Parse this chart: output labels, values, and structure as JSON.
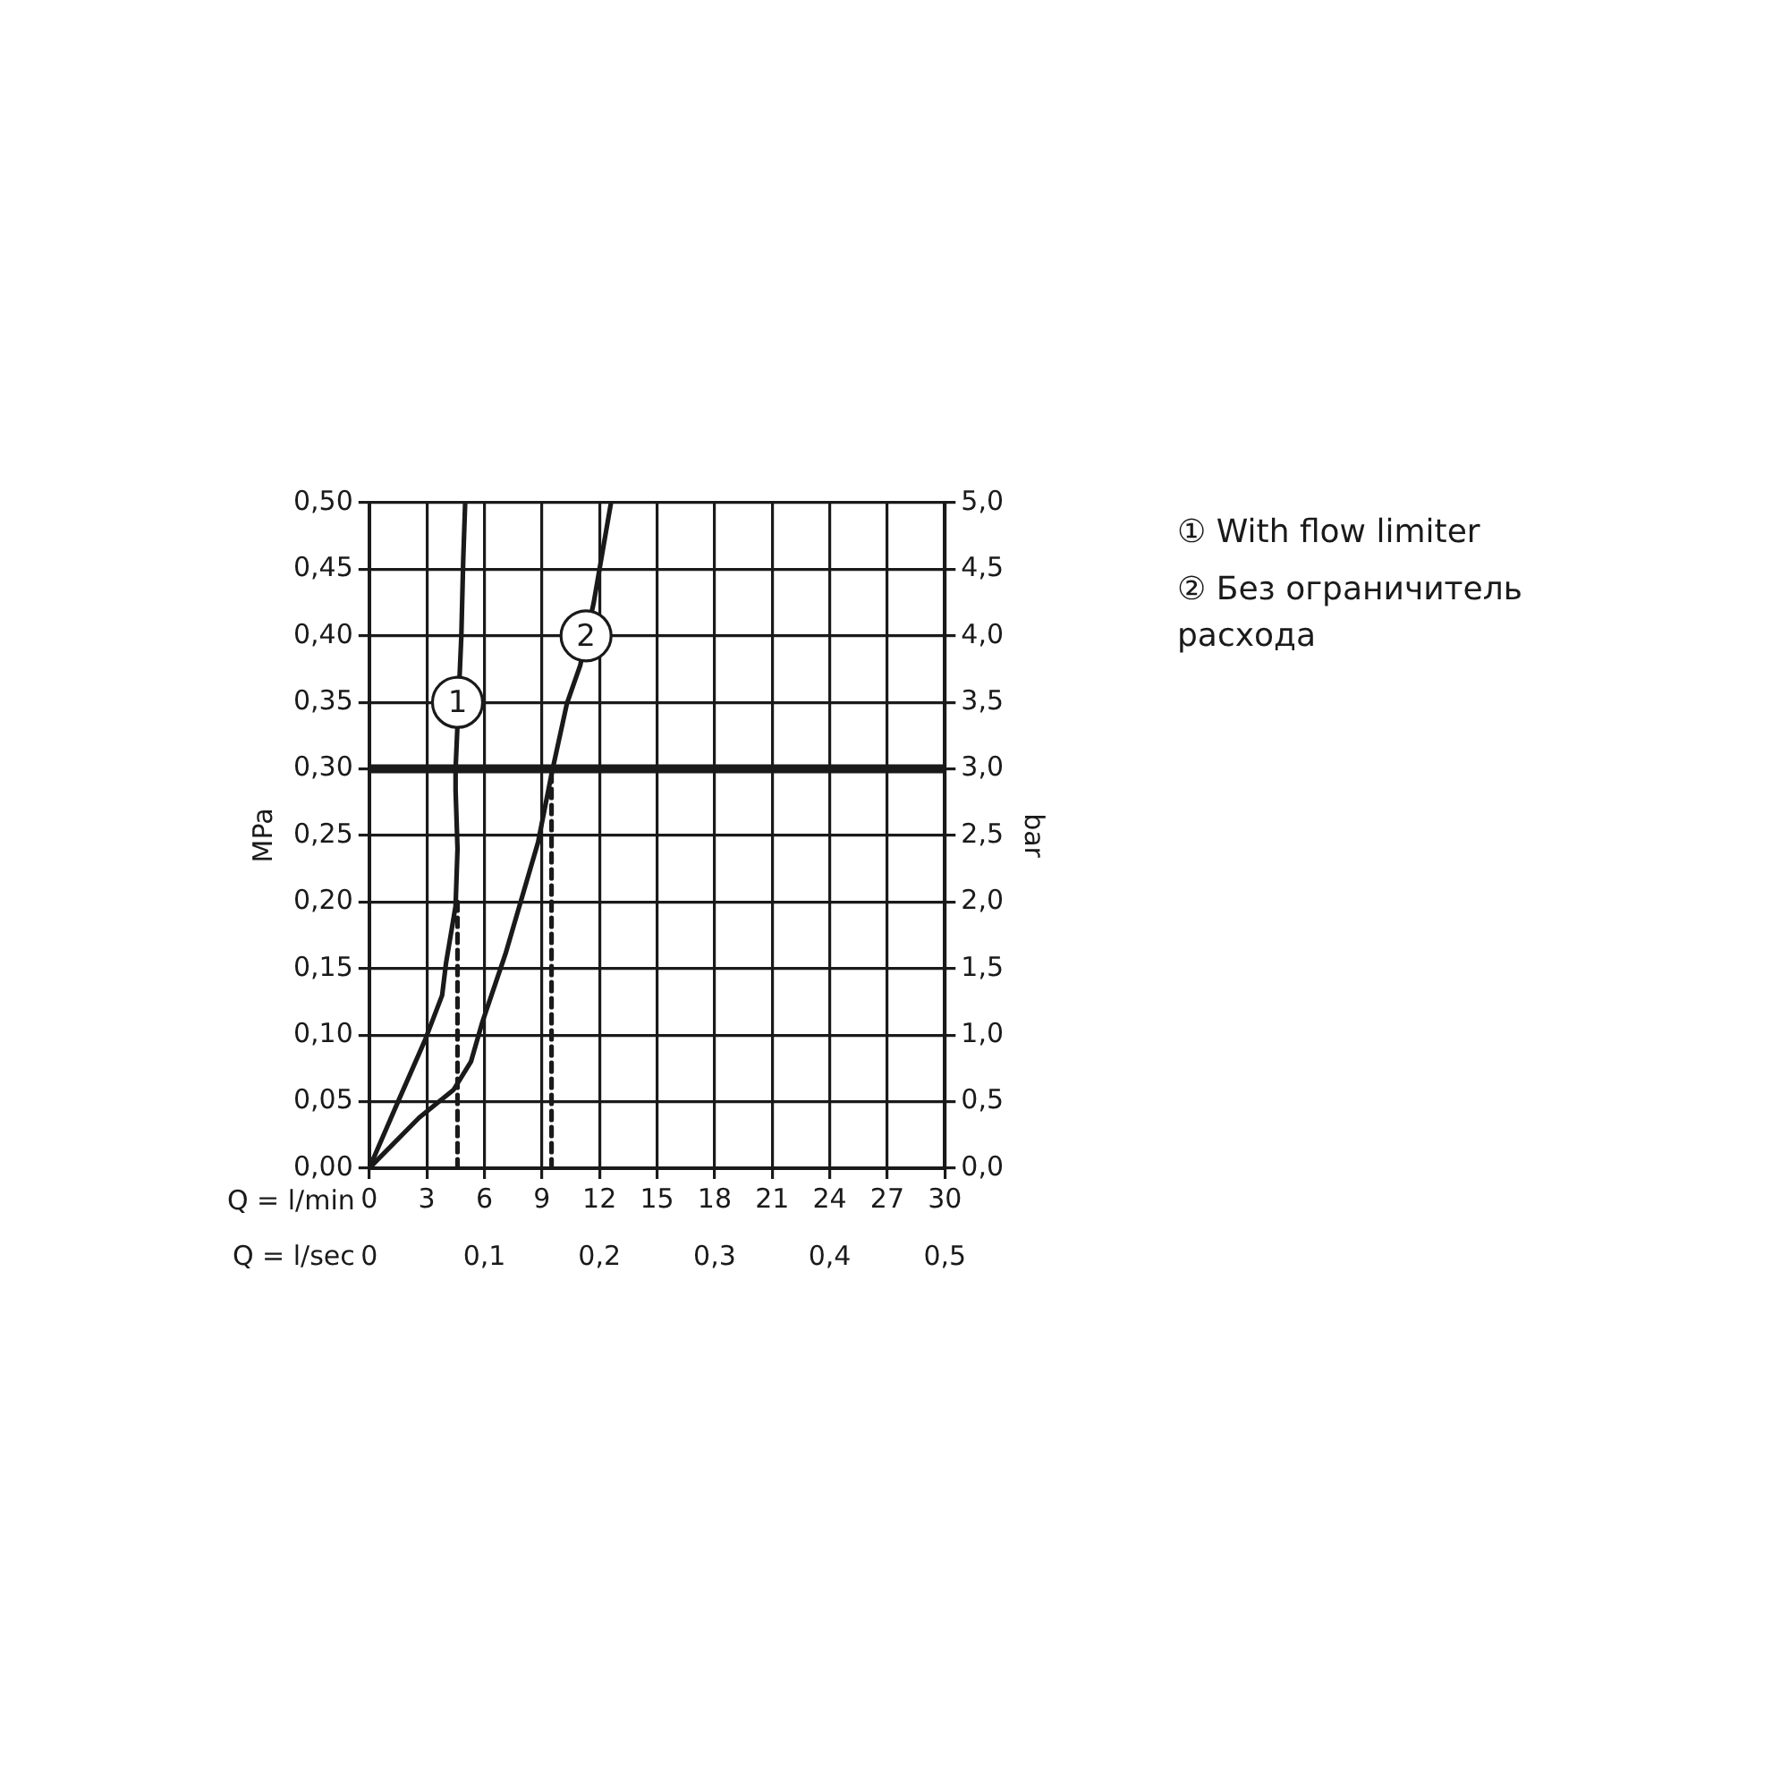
{
  "chart_data": {
    "type": "line",
    "xlabel": "Q = l/min",
    "x2label": "Q = l/sec",
    "ylabel": "MPa",
    "y2label": "bar",
    "xlim": [
      0,
      30
    ],
    "xticks": [
      0,
      3,
      6,
      9,
      12,
      15,
      18,
      21,
      24,
      27,
      30
    ],
    "x2lim": [
      0,
      0.5
    ],
    "x2ticks": [
      0,
      {
        "value": 0.1,
        "label": "0,1"
      },
      {
        "value": 0.2,
        "label": "0,2"
      },
      {
        "value": 0.3,
        "label": "0,3"
      },
      {
        "value": 0.4,
        "label": "0,4"
      },
      {
        "value": 0.5,
        "label": "0,5"
      }
    ],
    "ylim": [
      0,
      0.5
    ],
    "yticks": [
      {
        "value": 0,
        "label": "0,00"
      },
      {
        "value": 0.05,
        "label": "0,05"
      },
      {
        "value": 0.1,
        "label": "0,10"
      },
      {
        "value": 0.15,
        "label": "0,15"
      },
      {
        "value": 0.2,
        "label": "0,20"
      },
      {
        "value": 0.25,
        "label": "0,25"
      },
      {
        "value": 0.3,
        "label": "0,30"
      },
      {
        "value": 0.35,
        "label": "0,35"
      },
      {
        "value": 0.4,
        "label": "0,40"
      },
      {
        "value": 0.45,
        "label": "0,45"
      },
      {
        "value": 0.5,
        "label": "0,50"
      }
    ],
    "y2lim": [
      0,
      5
    ],
    "y2ticks": [
      {
        "value": 0,
        "label": "0,0"
      },
      {
        "value": 0.5,
        "label": "0,5"
      },
      {
        "value": 1,
        "label": "1,0"
      },
      {
        "value": 1.5,
        "label": "1,5"
      },
      {
        "value": 2,
        "label": "2,0"
      },
      {
        "value": 2.5,
        "label": "2,5"
      },
      {
        "value": 3,
        "label": "3,0"
      },
      {
        "value": 3.5,
        "label": "3,5"
      },
      {
        "value": 4,
        "label": "4,0"
      },
      {
        "value": 4.5,
        "label": "4,5"
      },
      {
        "value": 5,
        "label": "5,0"
      }
    ],
    "grid": true,
    "legend": "right",
    "marker": "none",
    "line_style": "solid",
    "series": [
      {
        "name": "① With flow limiter",
        "color": "#1a1a1a",
        "x": [
          0,
          1.5,
          2.9,
          3.8,
          4.0,
          4.5,
          4.6,
          4.5,
          4.5,
          4.8,
          4.9,
          5.0
        ],
        "values": [
          0,
          0.05,
          0.096,
          0.13,
          0.154,
          0.197,
          0.24,
          0.284,
          0.3,
          0.4,
          0.458,
          0.5
        ]
      },
      {
        "name": "② Без ограничитель расхода",
        "color": "#1a1a1a",
        "x": [
          0,
          2.6,
          4.4,
          5.3,
          5.9,
          7.1,
          8.8,
          9.5,
          10.3,
          11.0,
          11.7,
          12.6
        ],
        "values": [
          0,
          0.038,
          0.059,
          0.08,
          0.11,
          0.161,
          0.245,
          0.296,
          0.349,
          0.378,
          0.425,
          0.5
        ]
      },
      {
        "color": "#1a1a1a",
        "line_style": "dashed",
        "x": [
          4.6,
          4.6
        ],
        "values": [
          0,
          0.2
        ]
      },
      {
        "color": "#1a1a1a",
        "line_style": "dashed",
        "x": [
          9.5,
          9.5
        ],
        "values": [
          0,
          0.3
        ]
      }
    ],
    "ref_lines": [
      {
        "axis": "y",
        "value": 0.3,
        "color": "#1a1a1a"
      }
    ],
    "annotations": [
      {
        "text": "1",
        "x": 4.6,
        "y": 0.35
      },
      {
        "text": "2",
        "x": 11.3,
        "y": 0.4
      }
    ]
  }
}
